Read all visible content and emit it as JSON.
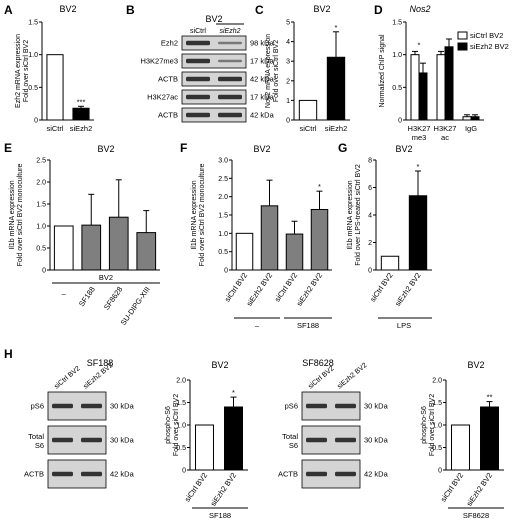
{
  "colors": {
    "filled": "#000000",
    "gray": "#7f7f7f",
    "empty": "#ffffff",
    "blot_bg": "#d4d4d4",
    "band": "#2a2a2a"
  },
  "panels": {
    "A": {
      "label": "A",
      "chart_data": {
        "type": "bar",
        "title": "BV2",
        "ylabel_lines": [
          "Ezh2 mRNA expression",
          "Fold over siCtrl BV2"
        ],
        "categories": [
          "siCtrl",
          "siEzh2"
        ],
        "values": [
          1.0,
          0.18
        ],
        "errors": [
          0,
          0.03
        ],
        "ylim": [
          0,
          1.5
        ],
        "yticks": [
          "0",
          "0.5",
          "1.0",
          "1.5"
        ],
        "significance": [
          "",
          "***"
        ]
      }
    },
    "B": {
      "label": "B",
      "title": "BV2",
      "lanes": [
        "siCtrl",
        "siEzh2"
      ],
      "rows": [
        {
          "name": "Ezh2",
          "kda": "98 kDa"
        },
        {
          "name": "H3K27me3",
          "kda": "17 kDa"
        },
        {
          "name": "ACTB",
          "kda": "42 kDa"
        },
        {
          "name": "H3K27ac",
          "kda": "17 kDa"
        },
        {
          "name": "ACTB",
          "kda": "42 kDa"
        }
      ]
    },
    "C": {
      "label": "C",
      "chart_data": {
        "type": "bar",
        "title": "BV2",
        "ylabel_lines": [
          "Nos2 mRNA expression",
          "Fold over siCtrl BV2"
        ],
        "categories": [
          "siCtrl",
          "siEzh2"
        ],
        "values": [
          1.0,
          3.2
        ],
        "errors": [
          0,
          1.3
        ],
        "ylim": [
          0,
          5
        ],
        "yticks": [
          "0",
          "1",
          "2",
          "3",
          "4",
          "5"
        ],
        "significance": [
          "",
          "*"
        ]
      }
    },
    "D": {
      "label": "D",
      "chart_data": {
        "type": "bar",
        "title": "Nos2",
        "ylabel_lines": [
          "Normalized ChIP signal"
        ],
        "categories": [
          "H3K27 me3",
          "H3K27 ac",
          "IgG"
        ],
        "category_lines": [
          [
            "H3K27",
            "me3"
          ],
          [
            "H3K27",
            "ac"
          ],
          [
            "IgG"
          ]
        ],
        "series": [
          {
            "name": "siCtrl BV2",
            "values": [
              1.0,
              1.0,
              0.05
            ],
            "errors": [
              0.05,
              0.05,
              0.03
            ]
          },
          {
            "name": "siEzh2 BV2",
            "values": [
              0.72,
              1.12,
              0.05
            ],
            "errors": [
              0.15,
              0.12,
              0.03
            ]
          }
        ],
        "ylim": [
          0,
          1.5
        ],
        "yticks": [
          "0",
          "0.5",
          "1.0",
          "1.5"
        ],
        "significance": [
          "*",
          "",
          ""
        ],
        "legend_position": "top-right"
      }
    },
    "E": {
      "label": "E",
      "chart_data": {
        "type": "bar",
        "title": "BV2",
        "ylabel_lines": [
          "Il1b mRNA expression",
          "Fold over siCtrl BV2 monoculture"
        ],
        "categories": [
          "–",
          "SF188",
          "SF8628",
          "SU-DIPG-XIII"
        ],
        "values": [
          1.0,
          1.02,
          1.2,
          0.85
        ],
        "errors": [
          0,
          0.7,
          0.85,
          0.5
        ],
        "ylim": [
          0,
          2.5
        ],
        "yticks": [
          "0",
          "0.5",
          "1.0",
          "1.5",
          "2.0",
          "2.5"
        ],
        "group_label": "BV2"
      }
    },
    "F": {
      "label": "F",
      "chart_data": {
        "type": "bar",
        "title": "BV2",
        "ylabel_lines": [
          "Il1b mRNA expression",
          "Fold over siCtrl BV2 monoculture"
        ],
        "categories": [
          "siCtrl BV2",
          "siEzh2 BV2",
          "siCtrl BV2",
          "siEzh2 BV2"
        ],
        "values": [
          1.0,
          1.75,
          0.98,
          1.65
        ],
        "errors": [
          0,
          0.7,
          0.35,
          0.5
        ],
        "ylim": [
          0,
          3.0
        ],
        "yticks": [
          "0",
          "0.5",
          "1.0",
          "1.5",
          "2.0",
          "2.5",
          "3.0"
        ],
        "significance": [
          "",
          "",
          "",
          "*"
        ],
        "group_labels": [
          "–",
          "SF188"
        ]
      }
    },
    "G": {
      "label": "G",
      "chart_data": {
        "type": "bar",
        "title": "BV2",
        "ylabel_lines": [
          "Il1b mRNA expression",
          "Fold over LPS-treated siCtrl BV2"
        ],
        "categories": [
          "siCtrl BV2",
          "siEzh2 BV2"
        ],
        "values": [
          1.0,
          5.4
        ],
        "errors": [
          0,
          1.8
        ],
        "ylim": [
          0,
          8
        ],
        "yticks": [
          "0",
          "2",
          "4",
          "6",
          "8"
        ],
        "significance": [
          "",
          "*"
        ],
        "group_label": "LPS"
      }
    },
    "H": {
      "label": "H",
      "blot1": {
        "title": "SF188",
        "lanes": [
          "siCtrl BV2",
          "siEzh2 BV2"
        ],
        "rows": [
          {
            "name": "pS6",
            "kda": "30 kDa"
          },
          {
            "name": "Total S6",
            "kda": "30 kDa"
          },
          {
            "name": "ACTB",
            "kda": "42 kDa"
          }
        ]
      },
      "chart1": {
        "type": "bar",
        "title": "BV2",
        "ylabel_lines": [
          "phospho-S6",
          "Fold over siCtrl BV2"
        ],
        "categories": [
          "siCtrl BV2",
          "siEzh2 BV2"
        ],
        "values": [
          1.0,
          1.4
        ],
        "errors": [
          0,
          0.22
        ],
        "ylim": [
          0,
          2.0
        ],
        "yticks": [
          "0",
          "0.5",
          "1.0",
          "1.5",
          "2.0"
        ],
        "significance": [
          "",
          "*"
        ],
        "group_label": "SF188"
      },
      "blot2": {
        "title": "SF8628",
        "lanes": [
          "siCtrl BV2",
          "siEzh2 BV2"
        ],
        "rows": [
          {
            "name": "pS6",
            "kda": "30 kDa"
          },
          {
            "name": "Total S6",
            "kda": "30 kDa"
          },
          {
            "name": "ACTB",
            "kda": "42 kDa"
          }
        ]
      },
      "chart2": {
        "type": "bar",
        "title": "BV2",
        "ylabel_lines": [
          "phospho-S6",
          "Fold over siCtrl BV2"
        ],
        "categories": [
          "siCtrl BV2",
          "siEzh2 BV2"
        ],
        "values": [
          1.0,
          1.4
        ],
        "errors": [
          0,
          0.12
        ],
        "ylim": [
          0,
          2.0
        ],
        "yticks": [
          "0",
          "0.5",
          "1.0",
          "1.5",
          "2.0"
        ],
        "significance": [
          "",
          "**"
        ],
        "group_label": "SF8628"
      }
    }
  }
}
